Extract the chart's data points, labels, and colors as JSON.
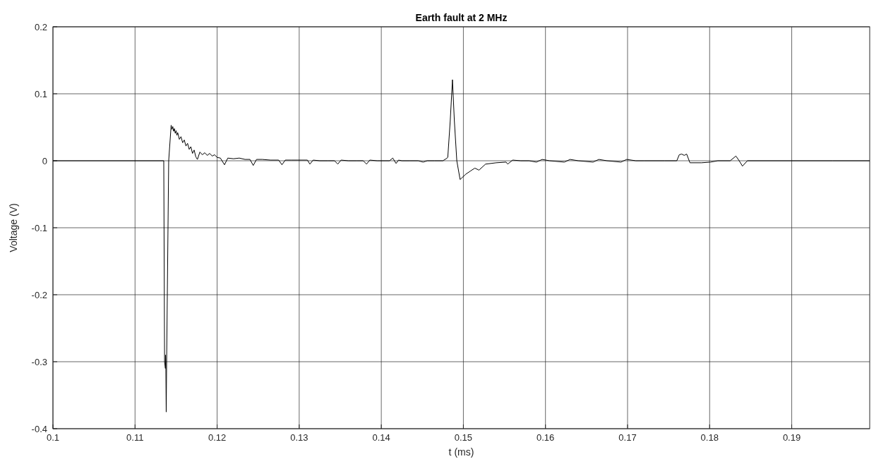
{
  "chart_data": {
    "type": "line",
    "title": "Earth fault at 2 MHz",
    "xlabel": "t (ms)",
    "ylabel": "Voltage (V)",
    "xlim": [
      0.1,
      0.1995
    ],
    "ylim": [
      -0.4,
      0.2
    ],
    "xticks": [
      0.1,
      0.11,
      0.12,
      0.13,
      0.14,
      0.15,
      0.16,
      0.17,
      0.18,
      0.19
    ],
    "yticks": [
      -0.4,
      -0.3,
      -0.2,
      -0.1,
      0,
      0.1,
      0.2
    ],
    "grid": true,
    "marker": "none",
    "line_style": "solid",
    "series": [
      {
        "color": "#000000",
        "x": [
          0.1,
          0.1135,
          0.1136,
          0.1137,
          0.11372,
          0.11375,
          0.1138,
          0.11385,
          0.1141,
          0.1144,
          0.1145,
          0.1146,
          0.1147,
          0.1148,
          0.1149,
          0.115,
          0.1151,
          0.1152,
          0.1154,
          0.1156,
          0.1158,
          0.116,
          0.1162,
          0.1164,
          0.1166,
          0.1168,
          0.117,
          0.1172,
          0.1174,
          0.1176,
          0.1179,
          0.1182,
          0.1185,
          0.1188,
          0.1191,
          0.1194,
          0.1197,
          0.12,
          0.1204,
          0.1209,
          0.1213,
          0.122,
          0.1227,
          0.1234,
          0.124,
          0.1244,
          0.1248,
          0.1255,
          0.1265,
          0.1275,
          0.1279,
          0.1283,
          0.129,
          0.13,
          0.131,
          0.1313,
          0.1317,
          0.1325,
          0.1335,
          0.1343,
          0.1347,
          0.1351,
          0.136,
          0.137,
          0.1378,
          0.1382,
          0.1386,
          0.1395,
          0.1405,
          0.141,
          0.1414,
          0.1418,
          0.1421,
          0.1425,
          0.1435,
          0.1445,
          0.1451,
          0.1456,
          0.1465,
          0.1475,
          0.1479,
          0.1481,
          0.1484,
          0.14867,
          0.1489,
          0.1492,
          0.1496,
          0.1503,
          0.1509,
          0.1514,
          0.1519,
          0.1527,
          0.154,
          0.1552,
          0.1554,
          0.156,
          0.157,
          0.158,
          0.1589,
          0.1596,
          0.1605,
          0.1623,
          0.163,
          0.164,
          0.1658,
          0.1665,
          0.1675,
          0.1692,
          0.1699,
          0.171,
          0.172,
          0.1745,
          0.176,
          0.1763,
          0.1766,
          0.1769,
          0.1772,
          0.1776,
          0.179,
          0.1801,
          0.181,
          0.1825,
          0.1832,
          0.1836,
          0.184,
          0.1846,
          0.186,
          0.19,
          0.195,
          0.1995
        ],
        "values": [
          0,
          0,
          -0.3,
          -0.31,
          -0.29,
          -0.3,
          -0.375,
          -0.3,
          0,
          0.053,
          0.047,
          0.051,
          0.044,
          0.048,
          0.041,
          0.045,
          0.038,
          0.042,
          0.032,
          0.036,
          0.027,
          0.031,
          0.022,
          0.026,
          0.017,
          0.021,
          0.011,
          0.016,
          0.006,
          0.002,
          0.013,
          0.009,
          0.012,
          0.008,
          0.011,
          0.007,
          0.009,
          0.005,
          0.004,
          -0.006,
          0.004,
          0.003,
          0.004,
          0.002,
          0.002,
          -0.007,
          0.002,
          0.002,
          0.001,
          0.001,
          -0.006,
          0.001,
          0.001,
          0.001,
          0.001,
          -0.005,
          0.001,
          0,
          0,
          0,
          -0.005,
          0.001,
          0,
          0,
          0,
          -0.005,
          0.001,
          0,
          0,
          0,
          0.004,
          -0.004,
          0.001,
          0,
          0,
          0,
          -0.002,
          0,
          0,
          0,
          0.003,
          0.005,
          0.06,
          0.121,
          0.06,
          0,
          -0.028,
          -0.02,
          -0.015,
          -0.011,
          -0.014,
          -0.005,
          -0.003,
          -0.002,
          -0.005,
          0.001,
          0,
          0,
          -0.002,
          0.002,
          0,
          -0.002,
          0.002,
          0,
          -0.002,
          0.002,
          0,
          -0.002,
          0.002,
          0,
          0,
          0,
          0,
          0.009,
          0.01,
          0.008,
          0.01,
          -0.003,
          -0.003,
          -0.002,
          0,
          0,
          0.007,
          0,
          -0.008,
          0,
          0,
          0,
          0,
          0
        ]
      }
    ]
  }
}
